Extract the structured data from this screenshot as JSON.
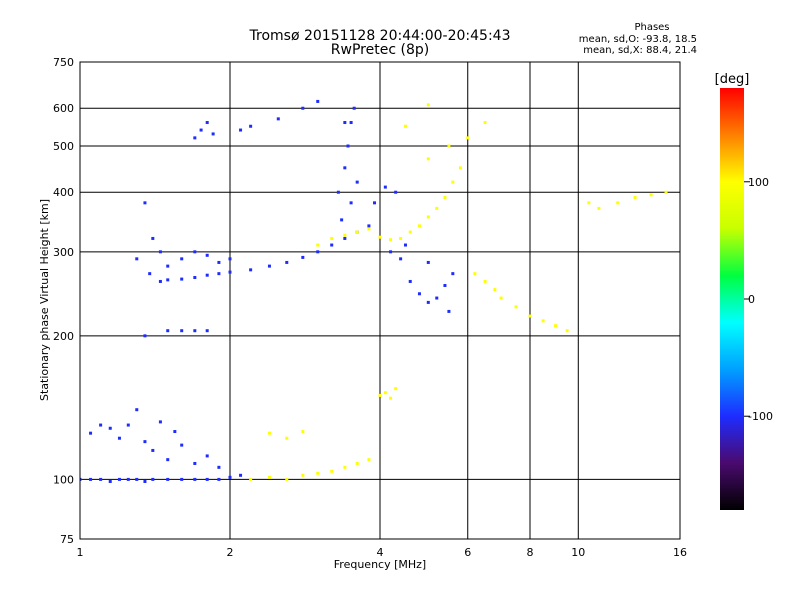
{
  "header": {
    "title_line1": "Tromsø 20151128 20:44:00-20:45:43",
    "title_line2": "RwPretec (8p)",
    "stats_title": "Phases",
    "stats_o": "mean, sd,O: -93.8, 18.5",
    "stats_x": "mean, sd,X:  88.4, 21.4"
  },
  "colors": {
    "background": "#ffffff",
    "grid": "#000000",
    "frame": "#000000"
  },
  "chart_data": {
    "type": "scatter",
    "title": "Tromsø 20151128 20:44:00-20:45:43",
    "subtitle": "RwPretec (8p)",
    "xlabel": "Frequency [MHz]",
    "ylabel": "Stationary phase Virtual Height [km]",
    "xscale": "log",
    "yscale": "log",
    "xlim": [
      1,
      16
    ],
    "ylim": [
      75,
      750
    ],
    "xticks": [
      1,
      2,
      4,
      6,
      8,
      10,
      16
    ],
    "yticks": [
      75,
      100,
      200,
      300,
      400,
      500,
      600,
      750
    ],
    "grid": true,
    "colorbar": {
      "label": "[deg]",
      "range": [
        -180,
        180
      ],
      "ticks": [
        100,
        0,
        -100
      ],
      "colormap": [
        "#000000",
        "#4a0a6e",
        "#1e2cff",
        "#00a0ff",
        "#00ffff",
        "#00ff40",
        "#c8ff00",
        "#ffff00",
        "#ff8000",
        "#ff0000"
      ]
    },
    "series": [
      {
        "name": "O",
        "phase_deg": -100,
        "points": [
          [
            1.0,
            100
          ],
          [
            1.05,
            100
          ],
          [
            1.1,
            100
          ],
          [
            1.15,
            99
          ],
          [
            1.2,
            100
          ],
          [
            1.25,
            100
          ],
          [
            1.3,
            100
          ],
          [
            1.35,
            99
          ],
          [
            1.4,
            100
          ],
          [
            1.5,
            100
          ],
          [
            1.6,
            100
          ],
          [
            1.7,
            100
          ],
          [
            1.8,
            100
          ],
          [
            1.9,
            100
          ],
          [
            2.0,
            101
          ],
          [
            2.1,
            102
          ],
          [
            1.05,
            125
          ],
          [
            1.1,
            130
          ],
          [
            1.15,
            128
          ],
          [
            1.2,
            122
          ],
          [
            1.25,
            130
          ],
          [
            1.3,
            140
          ],
          [
            1.35,
            120
          ],
          [
            1.4,
            115
          ],
          [
            1.45,
            132
          ],
          [
            1.5,
            110
          ],
          [
            1.55,
            126
          ],
          [
            1.6,
            118
          ],
          [
            1.7,
            108
          ],
          [
            1.8,
            112
          ],
          [
            1.9,
            106
          ],
          [
            1.3,
            290
          ],
          [
            1.35,
            200
          ],
          [
            1.38,
            270
          ],
          [
            1.45,
            260
          ],
          [
            1.5,
            262
          ],
          [
            1.6,
            263
          ],
          [
            1.7,
            265
          ],
          [
            1.8,
            268
          ],
          [
            1.9,
            270
          ],
          [
            2.0,
            272
          ],
          [
            2.2,
            275
          ],
          [
            2.4,
            280
          ],
          [
            2.6,
            285
          ],
          [
            2.8,
            292
          ],
          [
            3.0,
            300
          ],
          [
            3.2,
            310
          ],
          [
            3.4,
            320
          ],
          [
            3.6,
            330
          ],
          [
            3.8,
            340
          ],
          [
            1.35,
            380
          ],
          [
            1.4,
            320
          ],
          [
            1.45,
            300
          ],
          [
            1.5,
            280
          ],
          [
            1.6,
            290
          ],
          [
            1.7,
            300
          ],
          [
            1.8,
            295
          ],
          [
            1.9,
            285
          ],
          [
            2.0,
            290
          ],
          [
            3.3,
            400
          ],
          [
            3.4,
            450
          ],
          [
            3.45,
            500
          ],
          [
            3.5,
            560
          ],
          [
            3.55,
            600
          ],
          [
            3.4,
            560
          ],
          [
            3.35,
            350
          ],
          [
            3.5,
            380
          ],
          [
            3.6,
            420
          ],
          [
            1.7,
            520
          ],
          [
            1.75,
            540
          ],
          [
            1.8,
            560
          ],
          [
            1.85,
            530
          ],
          [
            2.1,
            540
          ],
          [
            2.2,
            550
          ],
          [
            2.5,
            570
          ],
          [
            2.8,
            600
          ],
          [
            3.0,
            620
          ],
          [
            1.5,
            205
          ],
          [
            1.6,
            205
          ],
          [
            1.7,
            205
          ],
          [
            1.8,
            205
          ],
          [
            4.2,
            300
          ],
          [
            4.4,
            290
          ],
          [
            4.6,
            260
          ],
          [
            4.8,
            245
          ],
          [
            5.0,
            235
          ],
          [
            5.2,
            240
          ],
          [
            5.4,
            255
          ],
          [
            5.6,
            270
          ],
          [
            4.5,
            310
          ],
          [
            5.0,
            285
          ],
          [
            5.5,
            225
          ],
          [
            4.1,
            410
          ],
          [
            4.3,
            400
          ],
          [
            3.9,
            380
          ]
        ]
      },
      {
        "name": "X",
        "phase_deg": 100,
        "points": [
          [
            2.2,
            100
          ],
          [
            2.4,
            101
          ],
          [
            2.6,
            100
          ],
          [
            2.8,
            102
          ],
          [
            3.0,
            103
          ],
          [
            3.2,
            104
          ],
          [
            3.4,
            106
          ],
          [
            3.6,
            108
          ],
          [
            3.8,
            110
          ],
          [
            3.0,
            310
          ],
          [
            3.2,
            320
          ],
          [
            3.4,
            325
          ],
          [
            3.6,
            330
          ],
          [
            3.8,
            335
          ],
          [
            4.0,
            322
          ],
          [
            4.2,
            318
          ],
          [
            4.4,
            320
          ],
          [
            4.6,
            330
          ],
          [
            4.8,
            340
          ],
          [
            5.0,
            355
          ],
          [
            5.2,
            370
          ],
          [
            5.4,
            390
          ],
          [
            5.6,
            420
          ],
          [
            5.8,
            450
          ],
          [
            4.0,
            150
          ],
          [
            4.1,
            152
          ],
          [
            4.2,
            148
          ],
          [
            4.3,
            155
          ],
          [
            2.4,
            125
          ],
          [
            2.6,
            122
          ],
          [
            2.8,
            126
          ],
          [
            6.2,
            270
          ],
          [
            6.5,
            260
          ],
          [
            6.8,
            250
          ],
          [
            7.0,
            240
          ],
          [
            7.5,
            230
          ],
          [
            8.0,
            220
          ],
          [
            8.5,
            215
          ],
          [
            9.0,
            210
          ],
          [
            9.5,
            205
          ],
          [
            5.0,
            470
          ],
          [
            5.5,
            500
          ],
          [
            6.0,
            520
          ],
          [
            6.5,
            560
          ],
          [
            4.5,
            550
          ],
          [
            5.0,
            610
          ],
          [
            10.5,
            380
          ],
          [
            11.0,
            370
          ],
          [
            12.0,
            380
          ],
          [
            13.0,
            390
          ],
          [
            14.0,
            395
          ],
          [
            15.0,
            400
          ]
        ]
      }
    ]
  }
}
